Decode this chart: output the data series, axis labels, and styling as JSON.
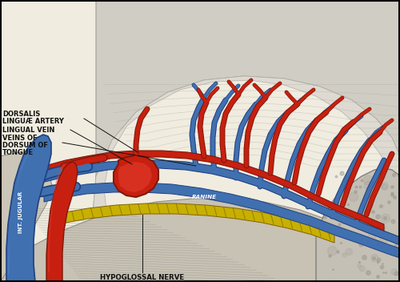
{
  "figsize": [
    5.0,
    3.52
  ],
  "dpi": 100,
  "background": "#f0ece0",
  "border_color": "#000000",
  "colors": {
    "artery_red": "#c82010",
    "vein_blue": "#4070b0",
    "nerve_yellow": "#c8b000",
    "tissue_gray": "#c0bab0",
    "tissue_light": "#d8d4c8",
    "tissue_dark": "#a8a098",
    "muscle_line": "#908880",
    "bone": "#d0c8b0",
    "outline": "#303030"
  },
  "labels": {
    "dorsalis": "DORSALIS",
    "linguae": "LINGUÆ ARTERY",
    "lingual_vein": "LINGUAL VEIN",
    "veins_of": "VEINS OF",
    "dorsum_of": "DORSUM OF",
    "tongue": "TONGUE",
    "int_jugular": "INT. JUGULAR",
    "ranine": "RANINE",
    "hypoglossal": "HYPOGLOSSAL NERVE"
  }
}
